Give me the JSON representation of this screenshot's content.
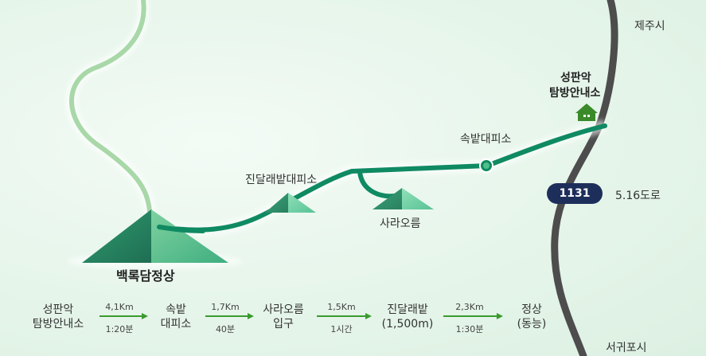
{
  "colors": {
    "route": "#0f8a62",
    "road": "#4d4d4d",
    "trail_light": "#a8d8a8",
    "badge": "#1d2e5a",
    "arrow": "#3a9a2e",
    "shelter_icon": "#3a8a2a"
  },
  "map": {
    "summit": "백록담정상",
    "jindallae": "진달래밭대피소",
    "sara_oreum": "사라오름",
    "sokbat": "속밭대피소",
    "seongpanak": [
      "성판악",
      "탐방안내소"
    ],
    "jeju_city": "제주시",
    "seogwipo": "서귀포시",
    "road_number": "1131",
    "road_name": "5.16도로",
    "icons": [
      "house-icon",
      "shelter-point-icon"
    ]
  },
  "route": {
    "steps": [
      [
        "성판악",
        "탐방안내소"
      ],
      [
        "속밭",
        "대피소"
      ],
      [
        "사라오름",
        "입구"
      ],
      [
        "진달래밭",
        "(1,500m)"
      ],
      [
        "정상",
        "(동능)"
      ]
    ],
    "segments": [
      {
        "distance": "4,1Km",
        "time": "1:20분"
      },
      {
        "distance": "1,7Km",
        "time": "40분"
      },
      {
        "distance": "1,5Km",
        "time": "1시간"
      },
      {
        "distance": "2,3Km",
        "time": "1:30분"
      }
    ]
  }
}
